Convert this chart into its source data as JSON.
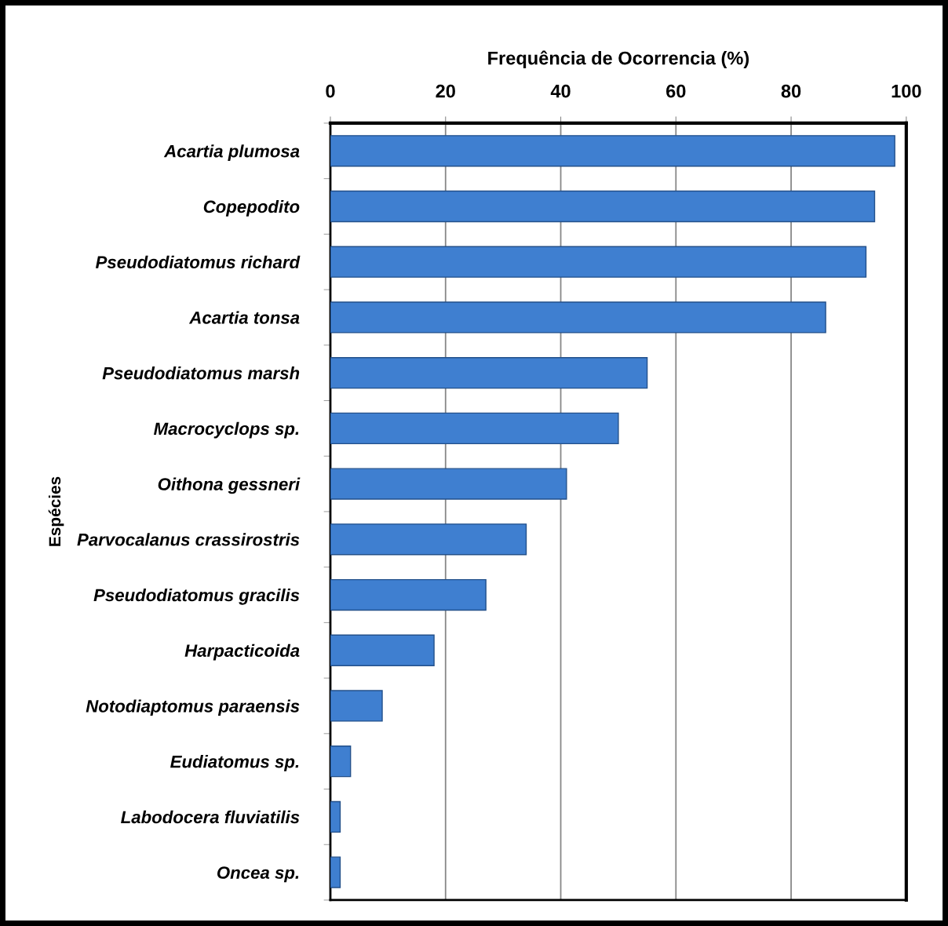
{
  "chart_data": {
    "type": "bar",
    "orientation": "horizontal",
    "xlabel": "Frequência de Ocorrencia (%)",
    "ylabel": "Espécies",
    "categories": [
      "Acartia plumosa",
      "Copepodito",
      "Pseudodiatomus richard",
      "Acartia tonsa",
      "Pseudodiatomus marsh",
      "Macrocyclops sp.",
      "Oithona gessneri",
      "Parvocalanus crassirostris",
      "Pseudodiatomus gracilis",
      "Harpacticoida",
      "Notodiaptomus paraensis",
      "Eudiatomus sp.",
      "Labodocera fluviatilis",
      "Oncea sp."
    ],
    "values": [
      98,
      94.5,
      93,
      86,
      55,
      50,
      41,
      34,
      27,
      18,
      9,
      3.5,
      1.7,
      1.7
    ],
    "color": "#3f7fd0",
    "xlim": [
      0,
      100
    ],
    "xticks": [
      0,
      20,
      40,
      60,
      80,
      100
    ],
    "grid": "x"
  }
}
